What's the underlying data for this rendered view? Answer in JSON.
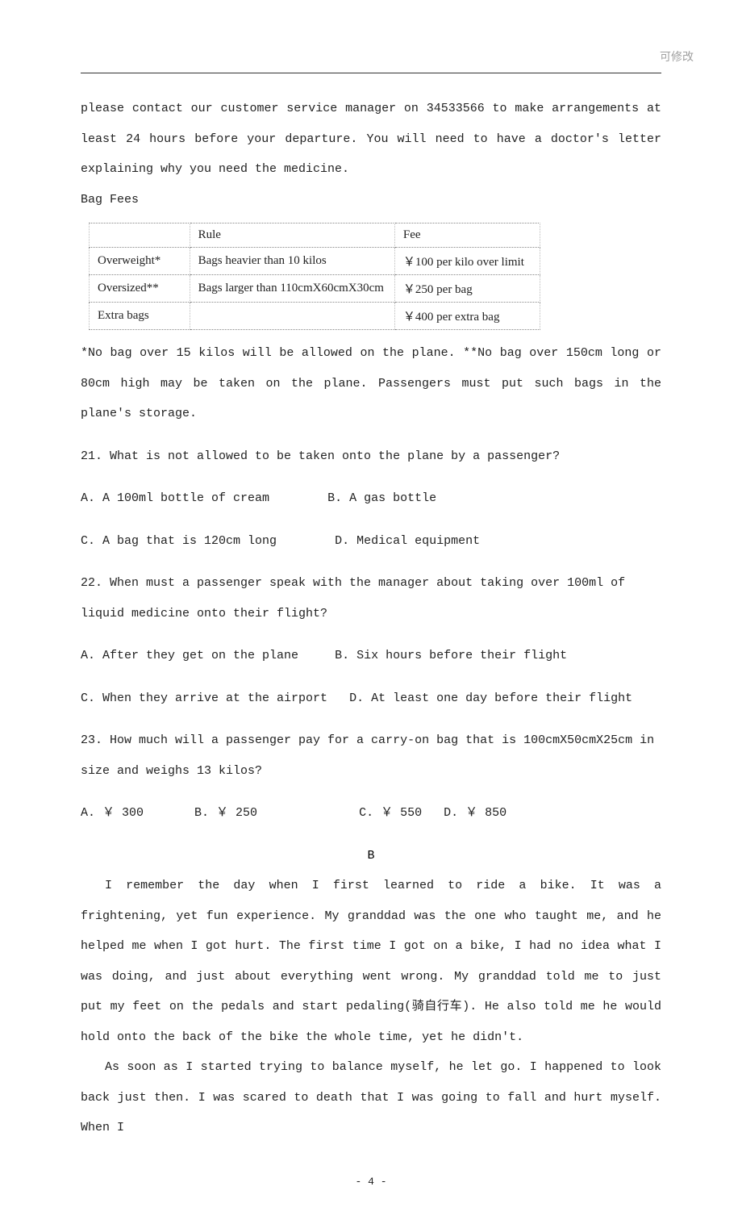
{
  "header": {
    "editable_label": "可修改"
  },
  "intro": {
    "p1": "please contact  our customer service manager on 34533566 to make arrangements at least 24 hours before your departure. You will need to have a doctor's letter explaining why you need the medicine.",
    "bag_fees_label": "Bag Fees"
  },
  "table": {
    "headers": {
      "rule": "Rule",
      "fee": "Fee"
    },
    "rows": [
      {
        "label": "Overweight*",
        "rule": "Bags heavier than 10 kilos",
        "fee": "￥100 per kilo over limit"
      },
      {
        "label": "Oversized**",
        "rule": "Bags larger than 110cmX60cmX30cm",
        "fee": "￥250 per bag"
      },
      {
        "label": "Extra bags",
        "rule": "",
        "fee": "￥400 per extra bag"
      }
    ]
  },
  "notes": {
    "p1": "*No bag over 15 kilos will be allowed on the plane. **No bag over 150cm long or 80cm high may be taken on the plane. Passengers must put such bags in the plane's storage."
  },
  "questions": {
    "q21": {
      "stem": "21. What is not allowed to be taken onto the plane by a passenger?",
      "a": "A. A 100ml bottle of cream",
      "b": "B. A gas bottle",
      "c": "C. A bag that is 120cm long",
      "d": "D. Medical equipment"
    },
    "q22": {
      "stem": "22. When must a passenger speak with the manager about taking over 100ml of liquid medicine onto their flight?",
      "a": "A. After they get on the plane",
      "b": "B. Six hours before their flight",
      "c": "C. When they arrive at the airport",
      "d": "D. At least one day before their flight"
    },
    "q23": {
      "stem": "23. How much will a passenger pay for a carry-on bag that is 100cmX50cmX25cm in size and weighs 13 kilos?",
      "a": "A. ￥ 300",
      "b": "B. ￥ 250",
      "c": "C. ￥ 550",
      "d": "D. ￥ 850"
    }
  },
  "passage_b": {
    "letter": "B",
    "p1": "I remember the day when I first learned to ride a bike. It was a frightening, yet fun experience. My granddad was the one who taught me, and he helped me when I got hurt. The first time I got on a bike, I had no idea what I was doing, and just about everything went wrong. My granddad told me to just put my feet on the pedals and start pedaling(骑自行车). He also told me he would hold onto the back of the bike the whole time, yet he didn't.",
    "p2": "As soon as I started trying to balance myself, he let go. I happened to look back just then. I was scared to death that I was going to fall and hurt myself. When I"
  },
  "footer": {
    "page_num": "- 4 -"
  }
}
